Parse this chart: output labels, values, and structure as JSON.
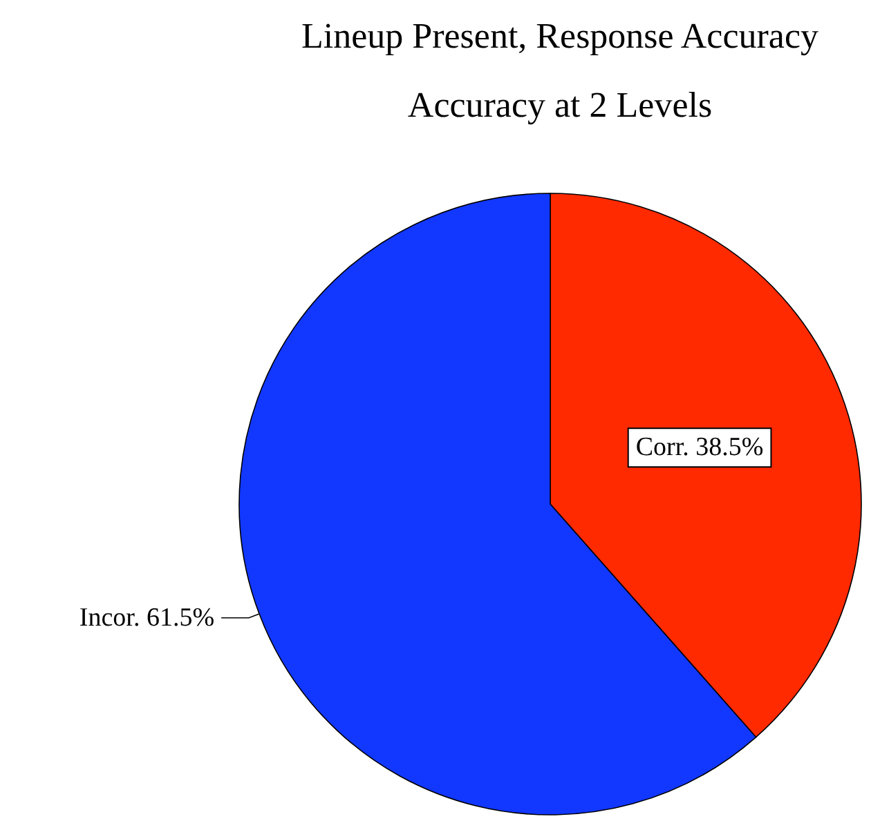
{
  "chart_data": {
    "type": "pie",
    "title": "Lineup Present, Response Accuracy",
    "subtitle": "Accuracy at 2 Levels",
    "categories": [
      "Corr.",
      "Incor."
    ],
    "values": [
      38.5,
      61.5
    ],
    "colors": [
      "#ff2a00",
      "#1238ff"
    ],
    "value_labels": [
      "38.5%",
      "61.5%"
    ],
    "legend": false
  }
}
